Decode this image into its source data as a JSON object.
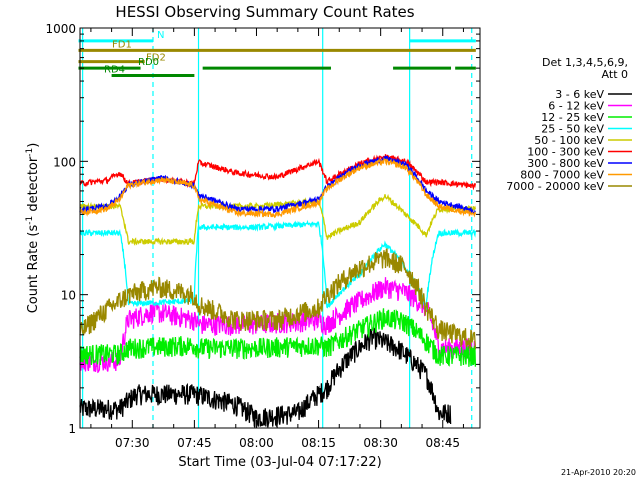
{
  "chart_data": {
    "type": "line",
    "title": "HESSI Observing Summary Count Rates",
    "xlabel": "Start Time (03-Jul-04 07:17:22)",
    "ylabel": "Count Rate (s",
    "ylabel_sup": "-1",
    "ylabel_rest": " detector",
    "ylabel_sup2": "-1",
    "ylabel_end": ")",
    "yscale": "log",
    "ylim": [
      1,
      1000
    ],
    "xlim": [
      "07:17:22",
      "08:54:00"
    ],
    "x_ticks": [
      "07:30",
      "07:45",
      "08:00",
      "08:15",
      "08:30",
      "08:45"
    ],
    "y_ticks": [
      "1",
      "10",
      "100",
      "1000"
    ],
    "legend_title": "Det 1,3,4,5,6,9,",
    "legend_subtitle": "Att 0",
    "series": [
      {
        "name": "3 - 6 keV",
        "color": "#000000",
        "x": [
          "07:17",
          "07:27",
          "07:29",
          "07:31",
          "07:45",
          "07:55",
          "08:00",
          "08:10",
          "08:13",
          "08:17",
          "08:22",
          "08:28",
          "08:34",
          "08:41",
          "08:44",
          "08:47"
        ],
        "y": [
          1.4,
          1.4,
          1.6,
          1.8,
          1.8,
          1.5,
          1.2,
          1.3,
          1.6,
          2.0,
          3.3,
          4.8,
          4.0,
          2.5,
          1.3,
          1.3
        ]
      },
      {
        "name": "6 - 12 keV",
        "color": "#ff00ff",
        "x": [
          "07:17",
          "07:27",
          "07:29",
          "07:35",
          "07:45",
          "07:46",
          "08:00",
          "08:15",
          "08:17",
          "08:25",
          "08:31",
          "08:36",
          "08:41",
          "08:44",
          "08:53"
        ],
        "y": [
          3.2,
          3.2,
          6.5,
          7.5,
          6.5,
          6.0,
          6.0,
          6.5,
          6.0,
          9.0,
          11.5,
          10.5,
          8.0,
          4.0,
          4.0
        ]
      },
      {
        "name": "12 - 25 keV",
        "color": "#00ee00",
        "x": [
          "07:17",
          "07:27",
          "07:29",
          "07:45",
          "07:46",
          "08:00",
          "08:15",
          "08:17",
          "08:25",
          "08:31",
          "08:36",
          "08:41",
          "08:44",
          "08:53"
        ],
        "y": [
          3.6,
          3.6,
          4.0,
          4.2,
          4.0,
          4.0,
          4.2,
          4.0,
          5.5,
          6.8,
          6.2,
          4.5,
          3.5,
          3.5
        ]
      },
      {
        "name": "25 - 50 keV",
        "color": "#00ffff",
        "x": [
          "07:17",
          "07:27",
          "07:29",
          "07:45",
          "07:46",
          "08:00",
          "08:15",
          "08:17",
          "08:25",
          "08:31",
          "08:36",
          "08:41",
          "08:44",
          "08:53"
        ],
        "y": [
          29,
          29,
          8.5,
          9.0,
          32,
          32,
          34,
          8.0,
          14,
          24,
          16,
          8.0,
          29,
          29
        ]
      },
      {
        "name": "50 - 100 keV",
        "color": "#cccc00",
        "x": [
          "07:17",
          "07:27",
          "07:29",
          "07:45",
          "07:46",
          "08:00",
          "08:15",
          "08:17",
          "08:25",
          "08:31",
          "08:36",
          "08:41",
          "08:44",
          "08:53"
        ],
        "y": [
          46,
          46,
          25,
          25,
          46,
          46,
          50,
          27,
          35,
          55,
          40,
          28,
          44,
          44
        ]
      },
      {
        "name": "100 - 300 keV",
        "color": "#ff0000",
        "x": [
          "07:17",
          "07:24",
          "07:27",
          "07:29",
          "07:37",
          "07:45",
          "07:46",
          "07:55",
          "08:05",
          "08:15",
          "08:17",
          "08:25",
          "08:31",
          "08:36",
          "08:41",
          "08:44",
          "08:53"
        ],
        "y": [
          68,
          72,
          82,
          68,
          74,
          68,
          98,
          82,
          76,
          100,
          70,
          96,
          108,
          100,
          70,
          70,
          65
        ]
      },
      {
        "name": "300 - 800 keV",
        "color": "#0000ff",
        "x": [
          "07:17",
          "07:24",
          "07:27",
          "07:29",
          "07:37",
          "07:45",
          "07:46",
          "07:55",
          "08:05",
          "08:15",
          "08:17",
          "08:25",
          "08:31",
          "08:36",
          "08:41",
          "08:44",
          "08:53"
        ],
        "y": [
          43,
          46,
          55,
          66,
          75,
          66,
          56,
          44,
          44,
          52,
          64,
          94,
          105,
          95,
          60,
          50,
          42
        ]
      },
      {
        "name": "800 - 7000 keV",
        "color": "#ff9900",
        "x": [
          "07:17",
          "07:24",
          "07:27",
          "07:29",
          "07:37",
          "07:45",
          "07:46",
          "07:55",
          "08:05",
          "08:15",
          "08:17",
          "08:25",
          "08:31",
          "08:36",
          "08:41",
          "08:44",
          "08:53"
        ],
        "y": [
          41,
          44,
          52,
          66,
          73,
          66,
          52,
          41,
          40,
          49,
          62,
          90,
          100,
          90,
          56,
          46,
          40
        ]
      },
      {
        "name": "7000 - 20000 keV",
        "color": "#998800",
        "x": [
          "07:17",
          "07:22",
          "07:27",
          "07:29",
          "07:36",
          "07:45",
          "07:46",
          "07:55",
          "08:05",
          "08:15",
          "08:17",
          "08:25",
          "08:31",
          "08:36",
          "08:41",
          "08:44",
          "08:53"
        ],
        "y": [
          5.0,
          7.0,
          9.0,
          10.0,
          11.5,
          10.0,
          8.5,
          6.5,
          6.5,
          8.0,
          10.0,
          16.0,
          19.0,
          16.0,
          8.0,
          5.5,
          4.5
        ]
      }
    ],
    "flag_bars": [
      {
        "label": "N",
        "color": "#00ffff",
        "level": 800,
        "segments": [
          [
            "07:17",
            "07:35"
          ],
          [
            "08:37",
            "08:53"
          ]
        ]
      },
      {
        "label": "FD1",
        "color": "#998800",
        "level": 680,
        "segments": [
          [
            "07:17",
            "08:53"
          ]
        ]
      },
      {
        "label": "FD2",
        "color": "#998800",
        "level": 560,
        "segments": [
          [
            "07:17",
            "07:33"
          ]
        ]
      },
      {
        "label": "RD0",
        "color": "#008800",
        "level": 500,
        "segments": [
          [
            "07:17",
            "07:32"
          ],
          [
            "07:47",
            "08:18"
          ],
          [
            "08:33",
            "08:47"
          ],
          [
            "08:48",
            "08:53"
          ]
        ]
      },
      {
        "label": "RD4",
        "color": "#008800",
        "level": 440,
        "segments": [
          [
            "07:25",
            "07:45"
          ]
        ]
      }
    ],
    "vertical_lines": [
      {
        "color": "#00ffff",
        "style": "solid",
        "x": [
          "07:18",
          "07:46",
          "08:16",
          "08:37"
        ]
      },
      {
        "color": "#00ffff",
        "style": "dashed",
        "x": [
          "07:35",
          "08:52"
        ]
      }
    ]
  },
  "footer": {
    "date_stamp": "21-Apr-2010 20:20"
  }
}
